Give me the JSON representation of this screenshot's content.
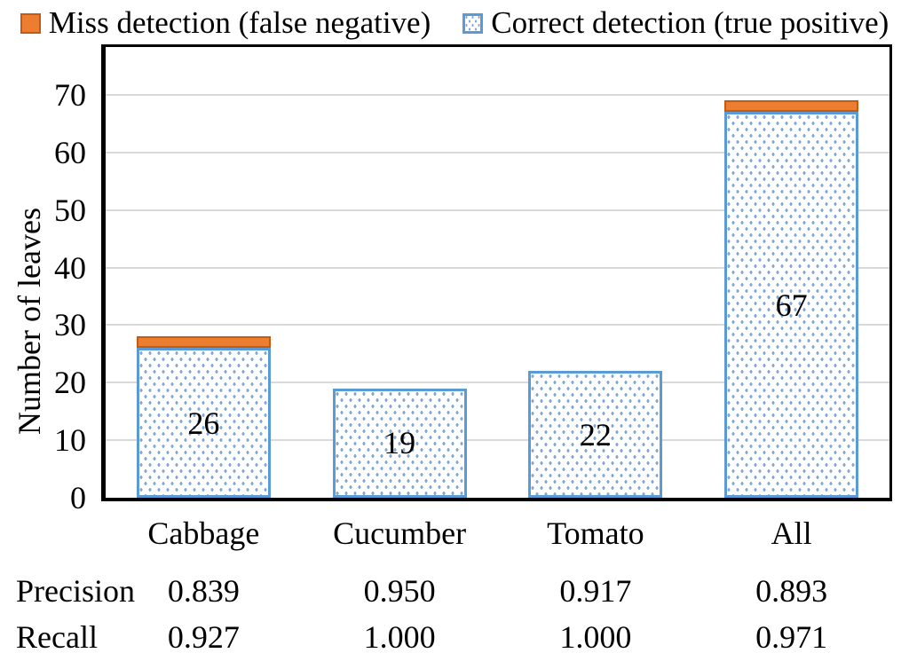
{
  "legend": {
    "miss_label": "Miss detection (false negative)",
    "correct_label": "Correct detection (true positive)"
  },
  "axes": {
    "y_title": "Number of leaves"
  },
  "stats": {
    "precision_label": "Precision",
    "recall_label": "Recall"
  },
  "colors": {
    "miss_fill": "#ED7D31",
    "miss_border": "#C55A11",
    "correct_border": "#5B9BD5",
    "correct_dot": "#7FA8D9",
    "gridline": "#D9D9D9",
    "axis": "#000000"
  },
  "chart_data": {
    "type": "bar",
    "stacked": true,
    "title": "",
    "xlabel": "",
    "ylabel": "Number of leaves",
    "categories": [
      "Cabbage",
      "Cucumber",
      "Tomato",
      "All"
    ],
    "series": [
      {
        "name": "Correct detection (true positive)",
        "values": [
          26,
          19,
          22,
          67
        ]
      },
      {
        "name": "Miss detection (false negative)",
        "values": [
          2,
          0,
          0,
          2
        ]
      }
    ],
    "bar_labels": [
      "26",
      "19",
      "22",
      "67"
    ],
    "precision": [
      "0.839",
      "0.950",
      "0.917",
      "0.893"
    ],
    "recall": [
      "0.927",
      "1.000",
      "1.000",
      "0.971"
    ],
    "yticks": [
      0,
      10,
      20,
      30,
      40,
      50,
      60,
      70
    ],
    "ylim": [
      0,
      78.3
    ],
    "grid": true,
    "legend_position": "top"
  }
}
